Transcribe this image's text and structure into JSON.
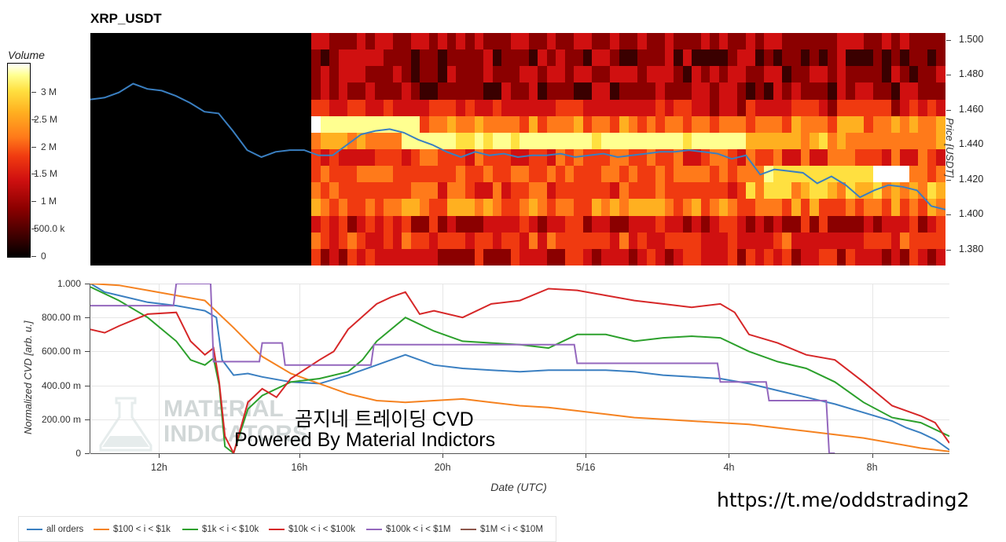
{
  "title": "XRP_USDT",
  "chart_data": [
    {
      "type": "heatmap",
      "title": "XRP_USDT",
      "colorbar": {
        "label": "Volume",
        "ticks": [
          "3 M",
          "2.5 M",
          "2 M",
          "1.5 M",
          "1 M",
          "500.0 k",
          "0"
        ],
        "tick_values": [
          3000000,
          2500000,
          2000000,
          1500000,
          1000000,
          500000,
          0
        ],
        "range": [
          0,
          3500000
        ],
        "colormap": [
          "#000000",
          "#3a0000",
          "#8b0000",
          "#d01010",
          "#f03a10",
          "#ff7a1a",
          "#ffb020",
          "#ffe040",
          "#ffff90",
          "#ffffff"
        ]
      },
      "ylabel": "Price [USDT]",
      "yticks": [
        "1.500",
        "1.480",
        "1.460",
        "1.440",
        "1.420",
        "1.400",
        "1.380"
      ],
      "ylim": [
        1.371,
        1.504
      ],
      "xlim": [
        0,
        30
      ],
      "x_unit": "hours from chart start",
      "price_line": {
        "color": "#3a7fc1",
        "x": [
          0,
          0.5,
          1,
          1.5,
          2,
          2.5,
          3,
          3.5,
          4,
          4.5,
          5,
          5.5,
          6,
          6.5,
          7,
          7.5,
          8,
          8.5,
          9,
          9.5,
          10,
          10.5,
          11,
          11.5,
          12,
          12.5,
          13,
          13.5,
          14,
          14.5,
          15,
          15.5,
          16,
          16.5,
          17,
          17.5,
          18,
          18.5,
          19,
          19.5,
          20,
          20.5,
          21,
          21.5,
          22,
          22.5,
          23,
          23.5,
          24,
          24.5,
          25,
          25.5,
          26,
          26.5,
          27,
          27.5,
          28,
          28.5,
          29,
          29.5,
          30
        ],
        "y": [
          1.466,
          1.467,
          1.47,
          1.475,
          1.472,
          1.471,
          1.468,
          1.464,
          1.459,
          1.458,
          1.448,
          1.437,
          1.433,
          1.436,
          1.437,
          1.437,
          1.434,
          1.434,
          1.44,
          1.446,
          1.448,
          1.449,
          1.447,
          1.443,
          1.44,
          1.436,
          1.433,
          1.436,
          1.434,
          1.435,
          1.433,
          1.434,
          1.434,
          1.435,
          1.433,
          1.434,
          1.435,
          1.433,
          1.434,
          1.435,
          1.436,
          1.436,
          1.437,
          1.436,
          1.435,
          1.432,
          1.434,
          1.423,
          1.426,
          1.425,
          1.424,
          1.418,
          1.422,
          1.417,
          1.41,
          1.414,
          1.417,
          1.416,
          1.414,
          1.405,
          1.403
        ]
      }
    },
    {
      "type": "line",
      "ylabel": "Normalized CVD [arb. u.]",
      "xlabel": "Date (UTC)",
      "ylim": [
        0,
        1
      ],
      "yticks": [
        "0",
        "200.00 m",
        "400.00 m",
        "600.00 m",
        "800.00 m",
        "1.000"
      ],
      "ytick_values": [
        0,
        0.2,
        0.4,
        0.6,
        0.8,
        1.0
      ],
      "xlim": [
        0,
        30
      ],
      "x_unit": "hours from chart start",
      "xticks": [
        "12h",
        "16h",
        "20h",
        "5/16",
        "4h",
        "8h"
      ],
      "xtick_values": [
        2.4,
        7.3,
        12.3,
        17.3,
        22.3,
        27.3
      ],
      "series": [
        {
          "name": "all orders",
          "color": "#3a7fc1",
          "x": [
            0,
            0.5,
            1,
            2,
            3,
            4,
            4.2,
            4.4,
            4.6,
            5,
            5.5,
            6,
            7,
            8,
            9,
            10,
            11,
            12,
            13,
            14,
            15,
            16,
            17,
            18,
            19,
            20,
            21,
            22,
            23,
            24,
            25,
            26,
            27,
            28,
            28.5,
            29,
            29.5,
            30
          ],
          "y": [
            1.0,
            0.95,
            0.93,
            0.89,
            0.87,
            0.84,
            0.82,
            0.8,
            0.55,
            0.46,
            0.47,
            0.45,
            0.42,
            0.41,
            0.46,
            0.52,
            0.58,
            0.52,
            0.5,
            0.49,
            0.48,
            0.49,
            0.49,
            0.49,
            0.48,
            0.46,
            0.45,
            0.44,
            0.41,
            0.37,
            0.33,
            0.29,
            0.24,
            0.19,
            0.15,
            0.12,
            0.08,
            0.02
          ]
        },
        {
          "name": "$100 < i < $1k",
          "color": "#f58220",
          "x": [
            0,
            1,
            2,
            3,
            4,
            5,
            6,
            7,
            8,
            9,
            10,
            11,
            12,
            13,
            14,
            15,
            16,
            17,
            18,
            19,
            20,
            21,
            22,
            23,
            24,
            25,
            26,
            27,
            28,
            29,
            30
          ],
          "y": [
            1.0,
            0.99,
            0.96,
            0.93,
            0.9,
            0.74,
            0.57,
            0.47,
            0.41,
            0.35,
            0.31,
            0.3,
            0.31,
            0.32,
            0.3,
            0.28,
            0.27,
            0.25,
            0.23,
            0.21,
            0.2,
            0.19,
            0.18,
            0.17,
            0.15,
            0.13,
            0.11,
            0.09,
            0.06,
            0.03,
            0.01
          ]
        },
        {
          "name": "$1k < i < $10k",
          "color": "#2ca02c",
          "x": [
            0,
            1,
            2,
            3,
            3.5,
            4,
            4.3,
            4.5,
            4.7,
            5,
            5.5,
            6,
            7,
            8,
            9,
            9.5,
            10,
            11,
            12,
            13,
            14,
            15,
            16,
            17,
            18,
            19,
            20,
            21,
            22,
            23,
            24,
            25,
            26,
            27,
            28,
            29,
            30
          ],
          "y": [
            0.98,
            0.9,
            0.8,
            0.66,
            0.55,
            0.52,
            0.56,
            0.4,
            0.04,
            0.0,
            0.26,
            0.34,
            0.42,
            0.44,
            0.48,
            0.55,
            0.66,
            0.8,
            0.72,
            0.66,
            0.65,
            0.64,
            0.62,
            0.7,
            0.7,
            0.66,
            0.68,
            0.69,
            0.68,
            0.6,
            0.54,
            0.5,
            0.42,
            0.3,
            0.21,
            0.18,
            0.1
          ]
        },
        {
          "name": "$10k < i < $100k",
          "color": "#d62728",
          "x": [
            0,
            0.5,
            1,
            2,
            3,
            3.5,
            4,
            4.3,
            4.5,
            4.7,
            5,
            5.5,
            6,
            6.5,
            7,
            8,
            8.5,
            9,
            10,
            10.5,
            11,
            11.5,
            12,
            13,
            14,
            15,
            16,
            17,
            18,
            19,
            20,
            21,
            22,
            22.5,
            23,
            24,
            25,
            26,
            27,
            28,
            29,
            29.5,
            30
          ],
          "y": [
            0.73,
            0.71,
            0.75,
            0.82,
            0.83,
            0.66,
            0.58,
            0.62,
            0.42,
            0.1,
            0.0,
            0.3,
            0.38,
            0.33,
            0.44,
            0.55,
            0.6,
            0.73,
            0.88,
            0.92,
            0.95,
            0.82,
            0.84,
            0.8,
            0.88,
            0.9,
            0.97,
            0.96,
            0.93,
            0.9,
            0.88,
            0.86,
            0.88,
            0.83,
            0.7,
            0.65,
            0.58,
            0.55,
            0.42,
            0.28,
            0.22,
            0.18,
            0.06
          ]
        },
        {
          "name": "$100k < i < $1M",
          "color": "#9467bd",
          "x": [
            0,
            2,
            2.9,
            3,
            4,
            4.2,
            4.3,
            5.9,
            6.0,
            6.7,
            6.8,
            9.8,
            9.9,
            16.9,
            17.0,
            21.9,
            22.0,
            23.6,
            23.7,
            25.7,
            25.8,
            26.0
          ],
          "y": [
            0.87,
            0.87,
            0.87,
            1.0,
            1.0,
            1.0,
            0.54,
            0.54,
            0.65,
            0.65,
            0.52,
            0.52,
            0.64,
            0.64,
            0.53,
            0.53,
            0.42,
            0.42,
            0.31,
            0.31,
            0.0,
            0.0
          ]
        },
        {
          "name": "$1M < i < $10M",
          "color": "#8c564b",
          "x": [],
          "y": []
        }
      ]
    }
  ],
  "watermark": {
    "line1": "MATERIAL",
    "line2": "INDICATORS"
  },
  "overlay": {
    "line1": "곰지네 트레이딩 CVD",
    "line2": "Powered By Material Indictors"
  },
  "link_text": "https://t.me/oddstrading2"
}
